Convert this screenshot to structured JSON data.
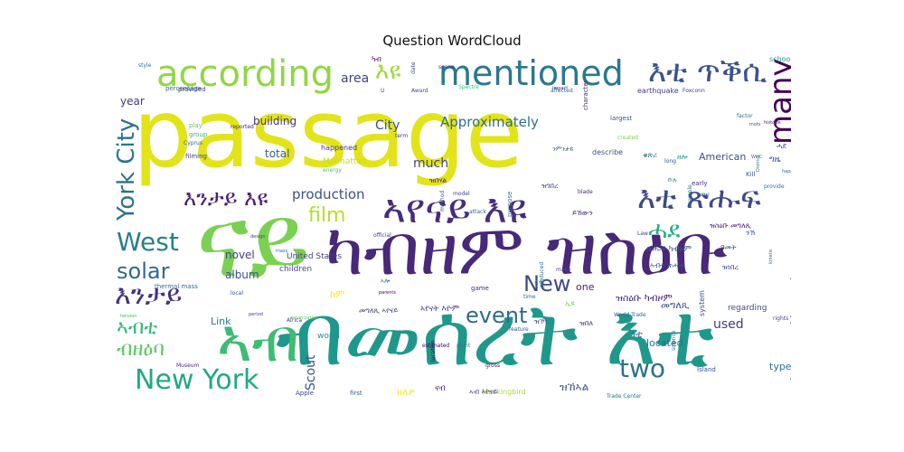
{
  "chart_data": {
    "type": "wordcloud",
    "title": "Question WordCloud",
    "words": [
      {
        "text": "passage",
        "color": "#e2e419"
      },
      {
        "text": "ናይ",
        "color": "#7ad151"
      },
      {
        "text": "ብመሰረት እቲ",
        "color": "#1f988b"
      },
      {
        "text": "ካብዘም ዝስዕቡ",
        "color": "#482878"
      },
      {
        "text": "according",
        "color": "#8fd744"
      },
      {
        "text": "mentioned",
        "color": "#2a788e"
      },
      {
        "text": "እቲ ጥቕሲ",
        "color": "#3b528b"
      },
      {
        "text": "ኣየናይ እዩ",
        "color": "#472d7b"
      },
      {
        "text": "New York",
        "color": "#22a884"
      },
      {
        "text": "ኣብ",
        "color": "#3fbc73"
      },
      {
        "text": "West",
        "color": "#277f8e"
      },
      {
        "text": "York City",
        "color": "#2c728e"
      },
      {
        "text": "many",
        "color": "#440154"
      },
      {
        "text": "እቲ ጽሑፍ",
        "color": "#3e4989"
      },
      {
        "text": "event",
        "color": "#306a8e"
      },
      {
        "text": "two",
        "color": "#2c728e"
      },
      {
        "text": "described",
        "color": "#39568c"
      },
      {
        "text": "እንታይ",
        "color": "#46327e"
      },
      {
        "text": "film",
        "color": "#b5de2b"
      },
      {
        "text": "solar",
        "color": "#31688e"
      },
      {
        "text": "New",
        "color": "#3e4a89"
      },
      {
        "text": "Approximately",
        "color": "#2e6e8e"
      },
      {
        "text": "እንታይ እዩ",
        "color": "#482173"
      },
      {
        "text": "production",
        "color": "#3b528b"
      },
      {
        "text": "ብዘዕባ",
        "color": "#5ec962"
      },
      {
        "text": "ኣብቲ",
        "color": "#35b779"
      },
      {
        "text": "እዩ",
        "color": "#a0da39"
      },
      {
        "text": "ሓደ",
        "color": "#25ac82"
      },
      {
        "text": "Scout",
        "color": "#3b528b"
      },
      {
        "text": "much",
        "color": "#404688"
      },
      {
        "text": "City",
        "color": "#3a548c"
      },
      {
        "text": "area",
        "color": "#414487"
      },
      {
        "text": "year",
        "color": "#453781"
      },
      {
        "text": "building",
        "color": "#443983"
      },
      {
        "text": "total",
        "color": "#355f8d"
      },
      {
        "text": "novel",
        "color": "#424086"
      },
      {
        "text": "album",
        "color": "#3c4f8a"
      },
      {
        "text": "Link",
        "color": "#2a788e"
      },
      {
        "text": "used",
        "color": "#453882"
      },
      {
        "text": "located",
        "color": "#2f6c8e"
      },
      {
        "text": "type",
        "color": "#2b758e"
      },
      {
        "text": "American",
        "color": "#3d4e8a"
      },
      {
        "text": "one",
        "color": "#481b6d"
      },
      {
        "text": "Manhattan",
        "color": "#c2df23"
      },
      {
        "text": "United States",
        "color": "#433e85"
      },
      {
        "text": "children",
        "color": "#3f4889"
      },
      {
        "text": "world",
        "color": "#21918c"
      },
      {
        "text": "happened",
        "color": "#453581"
      },
      {
        "text": "percentage",
        "color": "#2d708e"
      },
      {
        "text": "earthquake",
        "color": "#433d84"
      },
      {
        "text": "describe",
        "color": "#3a548c"
      },
      {
        "text": "regarding",
        "color": "#3d4d8a"
      },
      {
        "text": "Mockingbird",
        "color": "#a5db36"
      },
      {
        "text": "school",
        "color": "#1f9e89"
      },
      {
        "text": "system",
        "color": "#3b528b"
      },
      {
        "text": "ዝኸኣል",
        "color": "#3b528b"
      },
      {
        "text": "ዘለዎ",
        "color": "#fde725"
      },
      {
        "text": "ጽሑፍ ካብዞም",
        "color": "#3b528b"
      },
      {
        "text": "ዝስዕቡ መግለጺ",
        "color": "#482475"
      },
      {
        "text": "መግለጺ",
        "color": "#3b528b"
      },
      {
        "text": "ዝስዕቡ ካብዞም",
        "color": "#482878"
      },
      {
        "text": "መግለጺ ኣየናይ",
        "color": "#414487"
      },
      {
        "text": "ኣየናት እዮም",
        "color": "#433e85"
      },
      {
        "text": "ከም",
        "color": "#fde725"
      },
      {
        "text": "ኣብቲ ጽሑፍ",
        "color": "#3b528b"
      },
      {
        "text": "ዘሎ",
        "color": "#1f9e89"
      },
      {
        "text": "ነቲ",
        "color": "#31688e"
      },
      {
        "text": "ናብ",
        "color": "#482878"
      },
      {
        "text": "ዝነበረ",
        "color": "#3e4989"
      },
      {
        "text": "ኣብ ኣየናይ",
        "color": "#414487"
      },
      {
        "text": "ዋና",
        "color": "#31688e"
      },
      {
        "text": "ኣብ",
        "color": "#1f9e89"
      },
      {
        "text": "ኢዩ",
        "color": "#7ad151"
      },
      {
        "text": "ዓመት",
        "color": "#3b528b"
      },
      {
        "text": "ዝበለ",
        "color": "#433e85"
      },
      {
        "text": "ካብ",
        "color": "#440154"
      },
      {
        "text": "ግዜ",
        "color": "#3b528b"
      },
      {
        "text": "ሓደ",
        "color": "#46327e"
      },
      {
        "text": "ዝኾነ",
        "color": "#3e4989"
      },
      {
        "text": "ኩሉ",
        "color": "#26828e"
      },
      {
        "text": "ቁጽሪ",
        "color": "#2c728e"
      },
      {
        "text": "ዝገበረ",
        "color": "#3f4788"
      },
      {
        "text": "ንኽ",
        "color": "#3a548c"
      },
      {
        "text": "ይኸውን",
        "color": "#472a7a"
      },
      {
        "text": "style",
        "color": "#2a788e"
      },
      {
        "text": "provided",
        "color": "#414487"
      },
      {
        "text": "play",
        "color": "#5ec962"
      },
      {
        "text": "group",
        "color": "#35b779"
      },
      {
        "text": "Cyprus",
        "color": "#31688e"
      },
      {
        "text": "filming",
        "color": "#443a83"
      },
      {
        "text": "reported",
        "color": "#482878"
      },
      {
        "text": "thermal mass",
        "color": "#2c728e"
      },
      {
        "text": "local",
        "color": "#3b528b"
      },
      {
        "text": "Africa",
        "color": "#443983"
      },
      {
        "text": "Museum",
        "color": "#482878"
      },
      {
        "text": "Apple",
        "color": "#3e4989"
      },
      {
        "text": "first",
        "color": "#355f8d"
      },
      {
        "text": "location",
        "color": "#440154"
      },
      {
        "text": "gross",
        "color": "#471063"
      },
      {
        "text": "Trade Center",
        "color": "#2c728e"
      },
      {
        "text": "Island",
        "color": "#3b528b"
      },
      {
        "text": "science",
        "color": "#2a788e"
      },
      {
        "text": "World Trade",
        "color": "#31688e"
      },
      {
        "text": "rights",
        "color": "#414487"
      },
      {
        "text": "Foxconn",
        "color": "#433e85"
      },
      {
        "text": "factor",
        "color": "#2c728e"
      },
      {
        "text": "largest",
        "color": "#3b528b"
      },
      {
        "text": "character",
        "color": "#472d7b"
      },
      {
        "text": "created",
        "color": "#7ad151"
      },
      {
        "text": "affected",
        "color": "#31688e"
      },
      {
        "text": "Award",
        "color": "#3b528b"
      },
      {
        "text": "scene",
        "color": "#482878"
      },
      {
        "text": "Spectre",
        "color": "#3fbc73"
      },
      {
        "text": "term",
        "color": "#414487"
      },
      {
        "text": "game",
        "color": "#482878"
      },
      {
        "text": "time",
        "color": "#31688e"
      },
      {
        "text": "feature",
        "color": "#3b528b"
      },
      {
        "text": "plant",
        "color": "#2a788e"
      },
      {
        "text": "estimated",
        "color": "#440154"
      },
      {
        "text": "make",
        "color": "#3e4989"
      },
      {
        "text": "purpose",
        "color": "#2c728e"
      },
      {
        "text": "official",
        "color": "#433e85"
      },
      {
        "text": "attack",
        "color": "#31688e"
      },
      {
        "text": "method",
        "color": "#3b528b"
      },
      {
        "text": "energy",
        "color": "#3fbc73"
      },
      {
        "text": "model",
        "color": "#414487"
      },
      {
        "text": "early",
        "color": "#472d7b"
      },
      {
        "text": "long",
        "color": "#3b528b"
      },
      {
        "text": "provide",
        "color": "#2c728e"
      },
      {
        "text": "happens",
        "color": "#31688e"
      },
      {
        "text": "organization",
        "color": "#5ec962"
      },
      {
        "text": "blade",
        "color": "#482878"
      },
      {
        "text": "Law",
        "color": "#433e85"
      },
      {
        "text": "example",
        "color": "#2a788e"
      },
      {
        "text": "kinetic",
        "color": "#3b528b"
      },
      {
        "text": "parents",
        "color": "#440154"
      },
      {
        "text": "produced",
        "color": "#31688e"
      },
      {
        "text": "U",
        "color": "#3b528b"
      },
      {
        "text": "date",
        "color": "#414487"
      },
      {
        "text": "impact",
        "color": "#482878"
      },
      {
        "text": "Kill",
        "color": "#3b528b"
      },
      {
        "text": "WHC",
        "color": "#31688e"
      },
      {
        "text": "District",
        "color": "#2c728e"
      },
      {
        "text": "tension",
        "color": "#3fbc73"
      },
      {
        "text": "period",
        "color": "#433e85"
      },
      {
        "text": "mots",
        "color": "#3b528b"
      },
      {
        "text": "histoire",
        "color": "#482878"
      },
      {
        "text": "mass",
        "color": "#31688e"
      },
      {
        "text": "design",
        "color": "#414487"
      },
      {
        "text": "ዝበሃል",
        "color": "#482878"
      },
      {
        "text": "ኣሎ",
        "color": "#2c728e"
      },
      {
        "text": "ንምንታይ",
        "color": "#3b528b"
      }
    ]
  }
}
